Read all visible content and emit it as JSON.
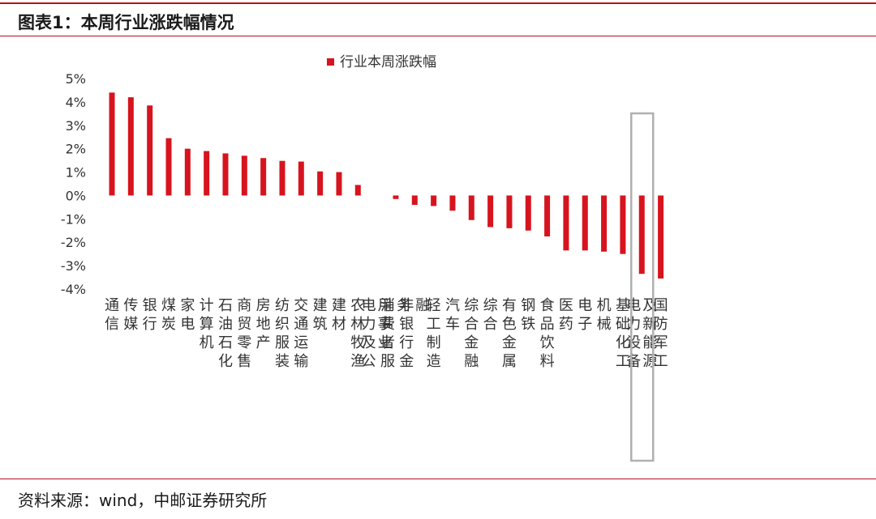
{
  "header": {
    "title": "图表1：本周行业涨跌幅情况"
  },
  "footer": {
    "source": "资料来源：wind，中邮证券研究所"
  },
  "colors": {
    "bar": "#d7141e",
    "rule": "#b5121b",
    "highlight_box": "#b0b0b0",
    "text": "#333333"
  },
  "chart_data": {
    "type": "bar",
    "legend": "行业本周涨跌幅",
    "legend_position": "top-center",
    "grid": false,
    "ylim": [
      -4,
      5
    ],
    "yticks": [
      "5%",
      "4%",
      "3%",
      "2%",
      "1%",
      "0%",
      "-1%",
      "-2%",
      "-3%",
      "-4%"
    ],
    "categories": [
      "通信",
      "传媒",
      "银行",
      "煤炭",
      "家电",
      "计算机",
      "石油石化",
      "商贸零售",
      "房地产",
      "纺织服装",
      "交通运输",
      "建筑",
      "建材",
      "农林牧渔",
      "电力及公用事业",
      "消费者服务",
      "非银行金融",
      "轻工制造",
      "汽车",
      "综合金融",
      "综合",
      "有色金属",
      "钢铁",
      "食品饮料",
      "医药",
      "电子",
      "机械",
      "基础化工",
      "电力设备及新能源",
      "国防军工"
    ],
    "values": [
      4.4,
      4.2,
      3.85,
      2.45,
      2.0,
      1.9,
      1.8,
      1.7,
      1.6,
      1.48,
      1.45,
      1.03,
      1.0,
      0.45,
      0.0,
      -0.15,
      -0.4,
      -0.45,
      -0.65,
      -1.05,
      -1.35,
      -1.4,
      -1.5,
      -1.75,
      -2.35,
      -2.35,
      -2.4,
      -2.5,
      -3.35,
      -3.55
    ],
    "highlight": "电力设备及新能源"
  }
}
